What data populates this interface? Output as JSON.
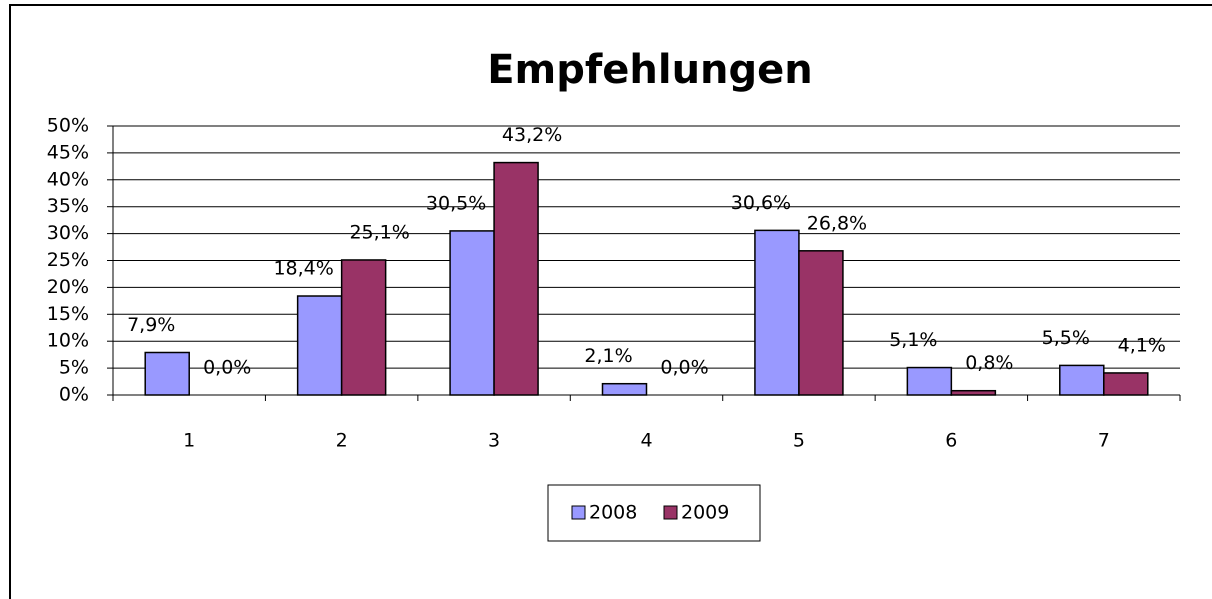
{
  "chart_data": {
    "type": "bar",
    "title": "Empfehlungen",
    "categories": [
      "1",
      "2",
      "3",
      "4",
      "5",
      "6",
      "7"
    ],
    "series": [
      {
        "name": "2008",
        "color": "#9999ff",
        "values": [
          7.9,
          18.4,
          30.5,
          2.1,
          30.6,
          5.1,
          5.5
        ],
        "value_labels": [
          "7,9%",
          "18,4%",
          "30,5%",
          "2,1%",
          "30,6%",
          "5,1%",
          "5,5%"
        ]
      },
      {
        "name": "2009",
        "color": "#993366",
        "values": [
          0.0,
          25.1,
          43.2,
          0.0,
          26.8,
          0.8,
          4.1
        ],
        "value_labels": [
          "0,0%",
          "25,1%",
          "43,2%",
          "0,0%",
          "26,8%",
          "0,8%",
          "4,1%"
        ]
      }
    ],
    "ylim": [
      0,
      50
    ],
    "yticks": [
      {
        "value": 0,
        "label": "0%"
      },
      {
        "value": 5,
        "label": "5%"
      },
      {
        "value": 10,
        "label": "10%"
      },
      {
        "value": 15,
        "label": "15%"
      },
      {
        "value": 20,
        "label": "20%"
      },
      {
        "value": 25,
        "label": "25%"
      },
      {
        "value": 30,
        "label": "30%"
      },
      {
        "value": 35,
        "label": "35%"
      },
      {
        "value": 40,
        "label": "40%"
      },
      {
        "value": 45,
        "label": "45%"
      },
      {
        "value": 50,
        "label": "50%"
      }
    ],
    "grid": true,
    "legend": "bottom"
  }
}
